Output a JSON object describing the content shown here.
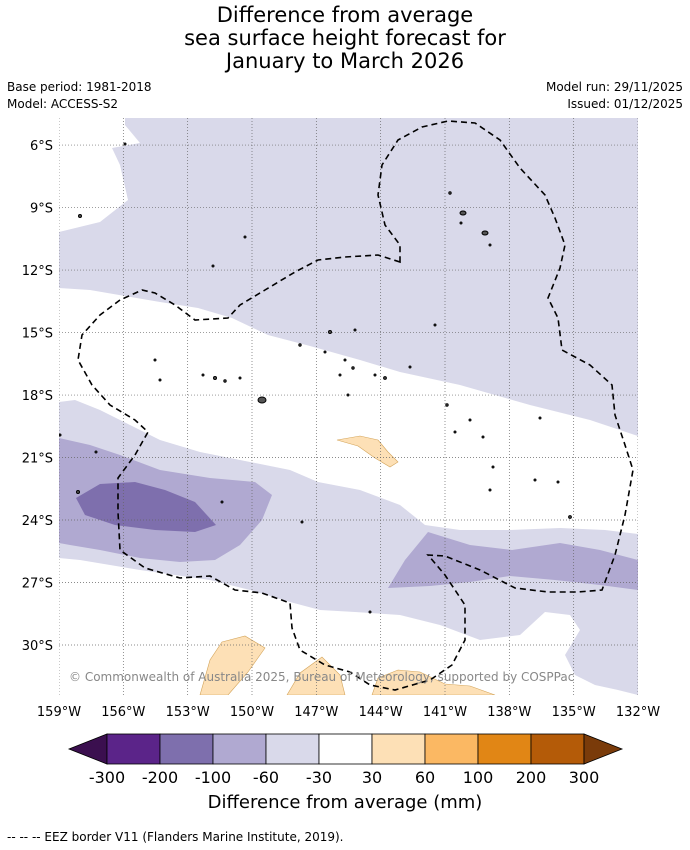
{
  "title_lines": [
    "Difference from average",
    "sea surface height forecast for",
    "January to March 2026"
  ],
  "meta": {
    "base_period": "Base period: 1981-2018",
    "model": "Model: ACCESS-S2",
    "model_run": "Model run: 29/11/2025",
    "issued": "Issued: 01/12/2025"
  },
  "map": {
    "lat_labels": [
      "6°S",
      "9°S",
      "12°S",
      "15°S",
      "18°S",
      "21°S",
      "24°S",
      "27°S",
      "30°S"
    ],
    "lon_labels": [
      "159°W",
      "156°W",
      "153°W",
      "150°W",
      "147°W",
      "144°W",
      "141°W",
      "138°W",
      "135°W",
      "132°W"
    ],
    "lon_range": [
      -159,
      -132
    ],
    "lat_range": [
      -32.4,
      -4.7
    ],
    "grid": "dotted",
    "copyright": "© Commonwealth of Australia 2025, Bureau of Meteorology, supported by COSPPac"
  },
  "colorbar": {
    "title": "Difference from average (mm)",
    "tick_labels": [
      "-300",
      "-200",
      "-100",
      "-60",
      "-30",
      "30",
      "60",
      "100",
      "200",
      "300"
    ],
    "colors": [
      "#3b0f4f",
      "#5b2489",
      "#7e6fad",
      "#b0a9d1",
      "#d9d9ea",
      "#ffffff",
      "#fde0b6",
      "#fbb863",
      "#e18615",
      "#b45b08",
      "#7a3b0a"
    ]
  },
  "footnote": "-- -- -- EEZ border V11 (Flanders Marine Institute, 2019)."
}
